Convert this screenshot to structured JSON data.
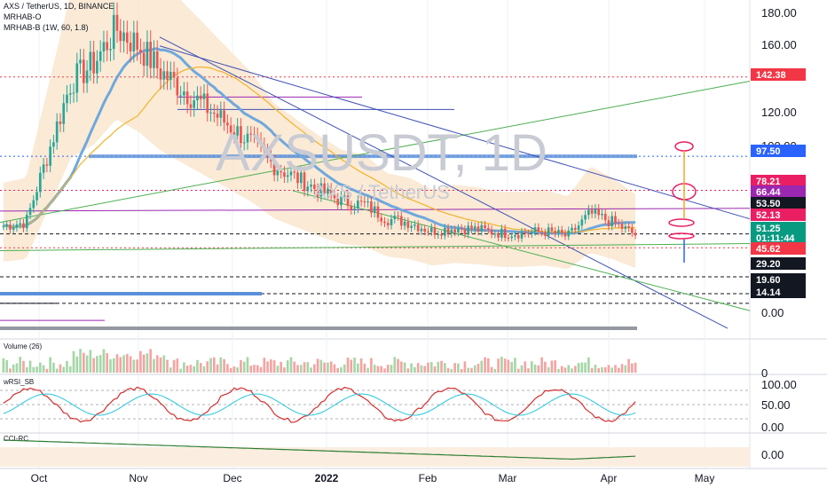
{
  "header": {
    "symbol_line": "AXS / TetherUS, 1D, BINANCE",
    "indicator_1": "MRHAB-O",
    "indicator_2": "MRHAB-B (1W, 60, 1.8)"
  },
  "watermark": {
    "main": "AXSUSDT, 1D",
    "sub": "AXS / TetherUS"
  },
  "chart_data": [
    {
      "type": "candlestick",
      "title": "AXS / TetherUS, 1D, BINANCE",
      "ylim": [
        -5,
        185
      ],
      "y_ticks": [
        "180.00",
        "160.00",
        "120.00",
        "100.00",
        "0.00"
      ],
      "x_ticks": [
        "Oct",
        "Nov",
        "Dec",
        "2022",
        "Feb",
        "Mar",
        "Apr",
        "May"
      ],
      "series": [
        {
          "name": "Price",
          "values": [
            58,
            60,
            100,
            140,
            150,
            170,
            160,
            145,
            135,
            125,
            115,
            105,
            92,
            85,
            78,
            72,
            70,
            62,
            60,
            55,
            57,
            56,
            54,
            54,
            55,
            52,
            65,
            60,
            53
          ]
        }
      ],
      "price_tags": [
        {
          "value": "142.38",
          "color": "#f23645",
          "fill": true
        },
        {
          "value": "97.50",
          "color": "#2962ff",
          "fill": true
        },
        {
          "value": "78.21",
          "color": "#e91e63",
          "fill": true
        },
        {
          "value": "66.44",
          "color": "#9c27b0",
          "fill": true
        },
        {
          "value": "53.50",
          "color": "#131722",
          "fill": true
        },
        {
          "value": "52.13",
          "color": "#e91e63",
          "fill": true
        },
        {
          "value": "51.25",
          "color": "#089981",
          "fill": true
        },
        {
          "value": "01:11:44",
          "color": "#089981",
          "fill": true
        },
        {
          "value": "45.62",
          "color": "#f23645",
          "fill": true
        },
        {
          "value": "29.20",
          "color": "#131722",
          "fill": true
        },
        {
          "value": "19.60",
          "color": "#131722",
          "fill": true
        },
        {
          "value": "14.14",
          "color": "#131722",
          "fill": true
        }
      ]
    },
    {
      "type": "bar",
      "title": "Volume (26)",
      "y_ticks": [
        "0"
      ]
    },
    {
      "type": "line",
      "title": "wRSI_SB",
      "y_ticks": [
        "100.00",
        "50.00",
        "0.00"
      ]
    },
    {
      "type": "line",
      "title": "CCI-RC",
      "y_ticks": [
        "0.00"
      ]
    }
  ],
  "colors": {
    "up": "#26a69a",
    "down": "#ef5350",
    "band": "#f8e3c8",
    "grid": "#eef0f3"
  }
}
